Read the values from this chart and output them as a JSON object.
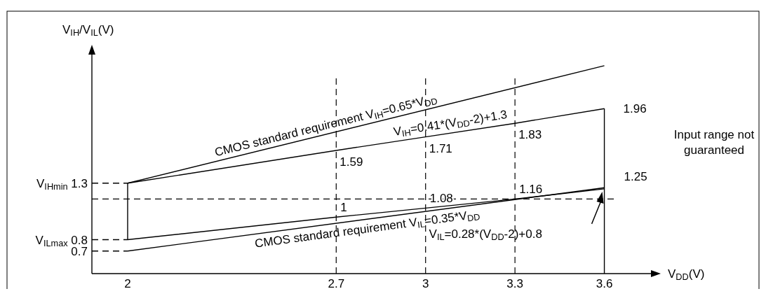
{
  "chart_data": {
    "type": "line",
    "xlabel": "V$_{DD}$(V)",
    "ylabel": "V$_{IH}$/V$_{IL}$(V)",
    "xlim": [
      1.88,
      3.78
    ],
    "xticks": [
      2,
      2.7,
      3,
      3.3,
      3.6
    ],
    "ylim": [
      0.5,
      2.5
    ],
    "yticks": [
      0.7,
      {
        "value": 0.8,
        "label": "V$_{ILmax}$ 0.8"
      },
      {
        "value": 1.3,
        "label": "V$_{IHmin}$ 1.3"
      }
    ],
    "grid": false,
    "marker": "none",
    "line_style": "solid",
    "series": [
      {
        "name": "CMOS standard requirement V$_{IH}$=0.65*V$_{DD}$",
        "color": "#000000",
        "x": [
          2,
          3.6
        ],
        "values": [
          1.3,
          2.34
        ]
      },
      {
        "name": "V$_{IH}$=0.41*(V$_{DD}$-2)+1.3",
        "color": "#000000",
        "x": [
          2,
          2.7,
          3,
          3.3,
          3.6
        ],
        "values": [
          1.3,
          1.59,
          1.71,
          1.83,
          1.96
        ],
        "value_labels": [
          null,
          "1.59",
          "1.71",
          "1.83",
          "1.96"
        ]
      },
      {
        "name": "V$_{IL}$=0.28*(V$_{DD}$-2)+0.8",
        "color": "#000000",
        "x": [
          2,
          2.7,
          3,
          3.3,
          3.6
        ],
        "values": [
          0.8,
          1,
          1.08,
          1.16,
          1.25
        ],
        "value_labels": [
          null,
          "1",
          "1.08",
          "1.16",
          "1.25"
        ]
      },
      {
        "name": "CMOS standard requirement V$_{IL}$=0.35*V$_{DD}$",
        "color": "#000000",
        "x": [
          2,
          3.6
        ],
        "values": [
          0.7,
          1.26
        ]
      },
      {
        "color": "#000000",
        "x": [
          2,
          2
        ],
        "values": [
          0.8,
          1.3
        ]
      },
      {
        "color": "#000000",
        "x": [
          3.6,
          3.6
        ],
        "values": [
          0.5,
          1.96
        ]
      },
      {
        "color": "#000000",
        "x": [
          1.88,
          2
        ],
        "values": [
          1.3,
          1.3
        ],
        "line_style": "dashed"
      },
      {
        "color": "#000000",
        "x": [
          1.88,
          2
        ],
        "values": [
          0.8,
          0.8
        ],
        "line_style": "dashed"
      },
      {
        "color": "#000000",
        "x": [
          1.88,
          2
        ],
        "values": [
          0.7,
          0.7
        ],
        "line_style": "dashed"
      }
    ],
    "ref_lines": [
      {
        "axis": "x",
        "value": 2.7,
        "line_style": "dashed",
        "color": "#000000"
      },
      {
        "axis": "x",
        "value": 3,
        "line_style": "dashed",
        "color": "#000000"
      },
      {
        "axis": "x",
        "value": 3.3,
        "line_style": "dashed",
        "color": "#000000"
      },
      {
        "axis": "y",
        "value": 1.16,
        "line_style": "dashed",
        "color": "#000000"
      }
    ],
    "annotations": [
      "Input range not guaranteed"
    ]
  }
}
